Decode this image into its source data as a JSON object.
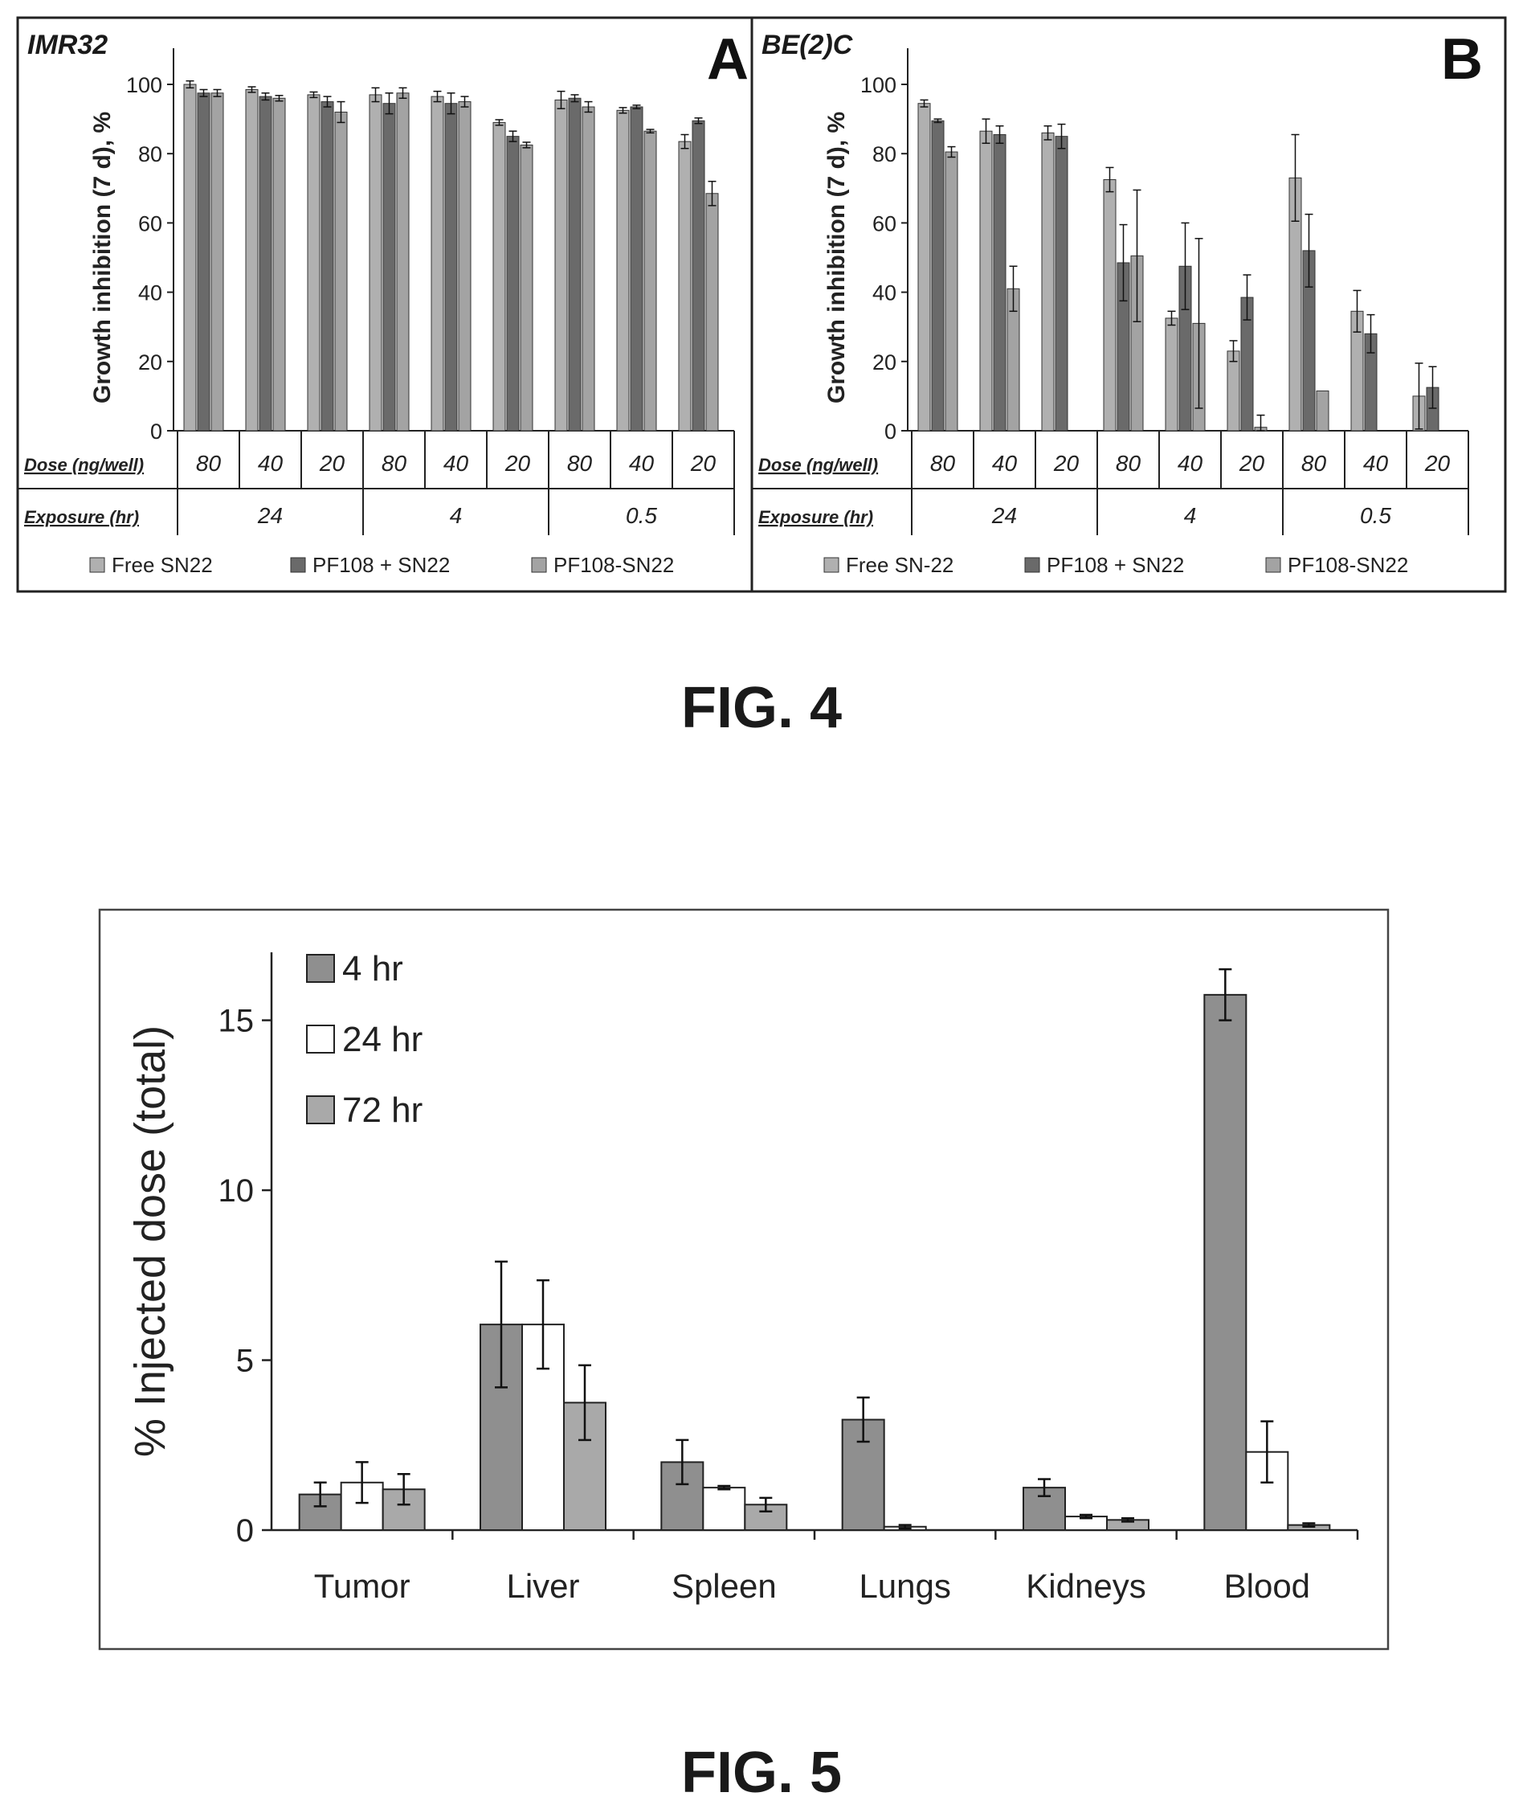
{
  "figures": [
    {
      "caption": "FIG. 4"
    },
    {
      "caption": "FIG. 5"
    }
  ],
  "colors": {
    "free": "#b0b0b0",
    "pf108_plus": "#6a6a6a",
    "pf108_conj": "#a3a3a3",
    "fig5_dark": "#8f8f8f",
    "fig5_white": "#ffffff",
    "fig5_light": "#a9a9a9"
  },
  "chart_data": [
    {
      "type": "bar",
      "panel_letter": "A",
      "title": "IMR32",
      "ylabel": "Growth inhibition (7 d), %",
      "ylim": [
        0,
        100
      ],
      "yticks": [
        0,
        20,
        40,
        60,
        80,
        100
      ],
      "row_labels": {
        "dose": "Dose (ng/well)",
        "exposure": "Exposure (hr)"
      },
      "categories": [
        "80",
        "40",
        "20",
        "80",
        "40",
        "20",
        "80",
        "40",
        "20"
      ],
      "exposure_groups": [
        "24",
        "4",
        "0.5"
      ],
      "series": [
        {
          "name": "Free SN22",
          "values": [
            100,
            98.5,
            97,
            97,
            96.5,
            89,
            95.5,
            92.5,
            83.5
          ],
          "errors": [
            1,
            0.8,
            0.8,
            2,
            1.5,
            0.8,
            2.5,
            0.8,
            2
          ]
        },
        {
          "name": "PF108 + SN22",
          "values": [
            97.5,
            96.5,
            95,
            94.5,
            94.5,
            85,
            96,
            93.5,
            89.5
          ],
          "errors": [
            1,
            1,
            1.5,
            3,
            3,
            1.5,
            1,
            0.5,
            0.8
          ]
        },
        {
          "name": "PF108-SN22",
          "values": [
            97.5,
            96,
            92,
            97.5,
            95,
            82.5,
            93.5,
            86.5,
            68.5
          ],
          "errors": [
            1,
            0.8,
            3,
            1.5,
            1.5,
            0.8,
            1.5,
            0.5,
            3.5
          ]
        }
      ],
      "legend_position": "bottom"
    },
    {
      "type": "bar",
      "panel_letter": "B",
      "title": "BE(2)C",
      "ylabel": "Growth inhibition (7 d), %",
      "ylim": [
        0,
        100
      ],
      "yticks": [
        0,
        20,
        40,
        60,
        80,
        100
      ],
      "row_labels": {
        "dose": "Dose (ng/well)",
        "exposure": "Exposure (hr)"
      },
      "categories": [
        "80",
        "40",
        "20",
        "80",
        "40",
        "20",
        "80",
        "40",
        "20"
      ],
      "exposure_groups": [
        "24",
        "4",
        "0.5"
      ],
      "series": [
        {
          "name": "Free SN-22",
          "values": [
            94.5,
            86.5,
            86,
            72.5,
            32.5,
            23,
            73,
            34.5,
            10
          ],
          "errors": [
            1,
            3.5,
            2,
            3.5,
            2,
            3,
            12.5,
            6,
            9.5
          ]
        },
        {
          "name": "PF108 + SN22",
          "values": [
            89.5,
            85.5,
            85,
            48.5,
            47.5,
            38.5,
            52,
            28,
            12.5
          ],
          "errors": [
            0.5,
            2.5,
            3.5,
            11,
            12.5,
            6.5,
            10.5,
            5.5,
            6
          ]
        },
        {
          "name": "PF108-SN22",
          "values": [
            80.5,
            41,
            0,
            50.5,
            31,
            1,
            11.5,
            0,
            0
          ],
          "errors": [
            1.5,
            6.5,
            0,
            19,
            24.5,
            3.5,
            0,
            0,
            0
          ]
        }
      ],
      "legend_position": "bottom"
    },
    {
      "type": "bar",
      "ylabel": "% Injected dose (total)",
      "ylim": [
        0,
        17
      ],
      "yticks": [
        0,
        5,
        10,
        15
      ],
      "categories": [
        "Tumor",
        "Liver",
        "Spleen",
        "Lungs",
        "Kidneys",
        "Blood"
      ],
      "series": [
        {
          "name": "4 hr",
          "values": [
            1.05,
            6.05,
            2.0,
            3.25,
            1.25,
            15.75
          ],
          "errors": [
            0.35,
            1.85,
            0.65,
            0.65,
            0.25,
            0.75
          ]
        },
        {
          "name": "24 hr",
          "values": [
            1.4,
            6.05,
            1.25,
            0.1,
            0.4,
            2.3
          ],
          "errors": [
            0.6,
            1.3,
            0.05,
            0.05,
            0.05,
            0.9
          ]
        },
        {
          "name": "72 hr",
          "values": [
            1.2,
            3.75,
            0.75,
            0.0,
            0.3,
            0.15
          ],
          "errors": [
            0.45,
            1.1,
            0.2,
            0,
            0.05,
            0.05
          ]
        }
      ],
      "legend_position": "top-left"
    }
  ]
}
